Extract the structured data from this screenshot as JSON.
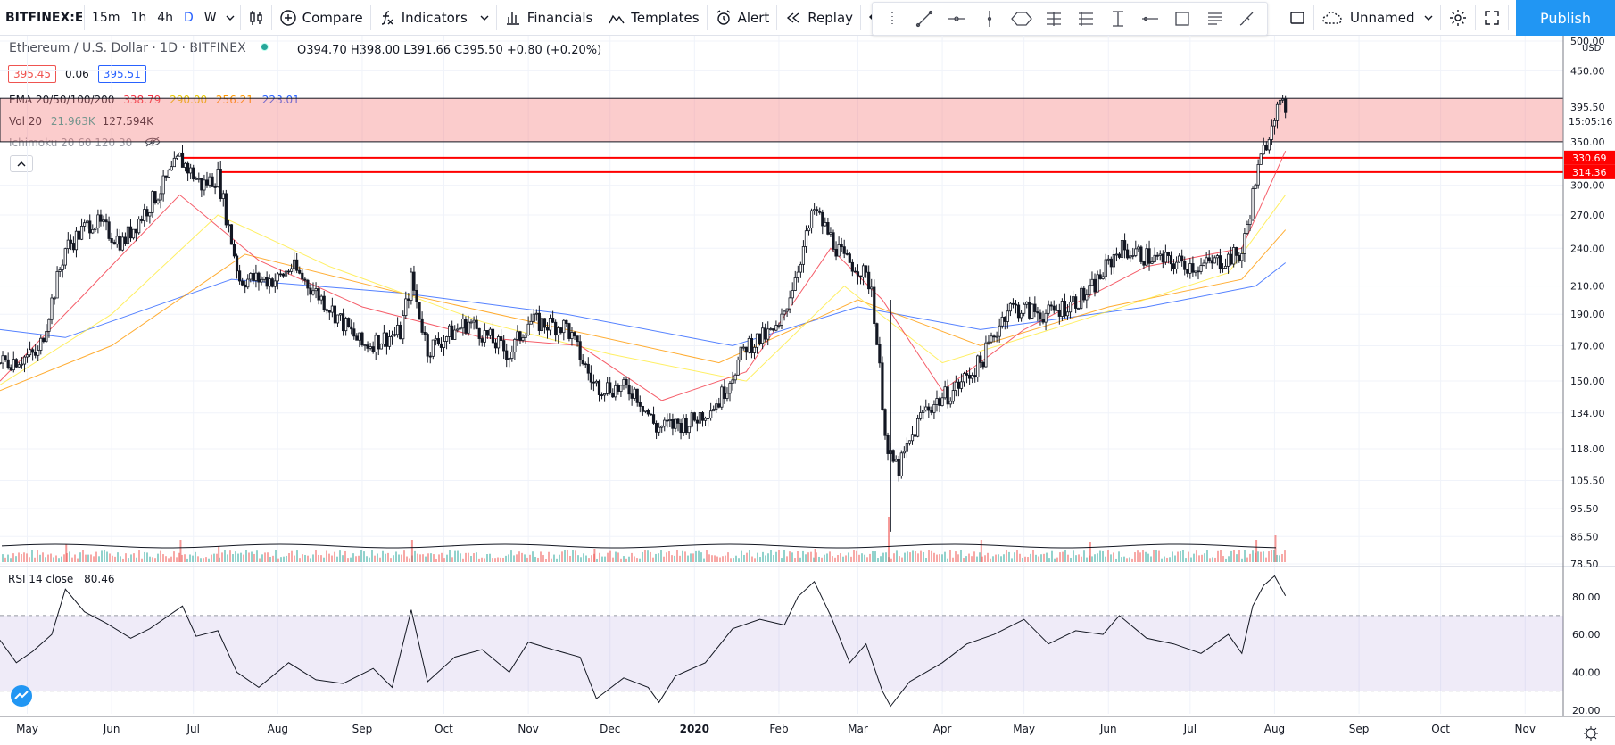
{
  "toolbar": {
    "symbol": "BITFINEX:ETHUSD",
    "intervals": [
      "15m",
      "1h",
      "4h",
      "D",
      "W"
    ],
    "active_interval": "D",
    "compare_label": "Compare",
    "indicators_label": "Indicators",
    "financials_label": "Financials",
    "templates_label": "Templates",
    "alert_label": "Alert",
    "replay_label": "Replay",
    "layout_name": "Unnamed",
    "publish_label": "Publish",
    "accent_color": "#2196f3"
  },
  "drawing_tools": [
    "trend-line-icon",
    "horizontal-ray-icon",
    "vertical-line-icon",
    "rotated-rectangle-icon",
    "fib-retracement-icon",
    "pitchfork-icon",
    "date-price-range-icon",
    "horizontal-line-icon",
    "rectangle-icon",
    "parallel-channel-icon",
    "brush-icon",
    "rectangle-outline-icon"
  ],
  "legend": {
    "title": "Ethereum / U.S. Dollar · 1D · BITFINEX",
    "open": "O394.70",
    "high": "H398.00",
    "low": "L391.66",
    "close": "C395.50",
    "change": "+0.80 (+0.20%)",
    "bid": "395.45",
    "spread": "0.06",
    "ask": "395.51"
  },
  "indicators": {
    "ema_label": "EMA 20/50/100/200",
    "ema_values": [
      "338.79",
      "290.00",
      "256.21",
      "228.01"
    ],
    "ema_colors": [
      "#f23645",
      "#ffeb3b",
      "#ff9800",
      "#2962ff"
    ],
    "vol_label": "Vol 20",
    "vol_values": [
      "21.963K",
      "127.594K"
    ],
    "ichimoku_label": "Ichimoku 20 60 120 30",
    "rsi_label": "RSI 14 close",
    "rsi_value": "80.46"
  },
  "price_axis": {
    "currency": "USD",
    "ticks": [
      "500.00",
      "450.00",
      "395.50",
      "350.00",
      "300.00",
      "270.00",
      "240.00",
      "210.00",
      "190.00",
      "170.00",
      "150.00",
      "134.00",
      "118.00",
      "105.50",
      "95.50",
      "86.50",
      "78.50"
    ],
    "last_price": "395.50",
    "countdown": "15:05:16",
    "levels": [
      "330.69",
      "314.36"
    ],
    "level_color": "#ff0000"
  },
  "rsi_axis": {
    "ticks": [
      "80.00",
      "60.00",
      "40.00",
      "20.00"
    ]
  },
  "time_axis": {
    "ticks": [
      "May",
      "Jun",
      "Jul",
      "Aug",
      "Sep",
      "Oct",
      "Nov",
      "Dec",
      "2020",
      "Feb",
      "Mar",
      "Apr",
      "May",
      "Jun",
      "Jul",
      "Aug",
      "Sep",
      "Oct",
      "Nov"
    ]
  },
  "chart_data": {
    "type": "candlestick",
    "scale": "log",
    "ylim": [
      78.5,
      500
    ],
    "x_range": [
      "2019-04-21",
      "2020-11-15"
    ],
    "last_date": "2020-08-05",
    "path_points": [
      [
        "2019-04-21",
        160
      ],
      [
        "2019-05-05",
        165
      ],
      [
        "2019-05-15",
        240
      ],
      [
        "2019-05-25",
        265
      ],
      [
        "2019-06-05",
        245
      ],
      [
        "2019-06-20",
        300
      ],
      [
        "2019-06-26",
        330
      ],
      [
        "2019-07-04",
        300
      ],
      [
        "2019-07-10",
        310
      ],
      [
        "2019-07-18",
        215
      ],
      [
        "2019-08-01",
        215
      ],
      [
        "2019-08-06",
        225
      ],
      [
        "2019-08-20",
        195
      ],
      [
        "2019-09-01",
        170
      ],
      [
        "2019-09-15",
        178
      ],
      [
        "2019-09-19",
        215
      ],
      [
        "2019-09-25",
        168
      ],
      [
        "2019-10-10",
        185
      ],
      [
        "2019-10-25",
        165
      ],
      [
        "2019-11-01",
        185
      ],
      [
        "2019-11-15",
        182
      ],
      [
        "2019-11-25",
        148
      ],
      [
        "2019-12-10",
        145
      ],
      [
        "2019-12-18",
        127
      ],
      [
        "2019-12-31",
        130
      ],
      [
        "2020-01-10",
        140
      ],
      [
        "2020-01-20",
        170
      ],
      [
        "2020-02-01",
        180
      ],
      [
        "2020-02-08",
        225
      ],
      [
        "2020-02-14",
        275
      ],
      [
        "2020-02-25",
        230
      ],
      [
        "2020-03-01",
        225
      ],
      [
        "2020-03-06",
        210
      ],
      [
        "2020-03-12",
        115
      ],
      [
        "2020-03-16",
        110
      ],
      [
        "2020-03-25",
        135
      ],
      [
        "2020-04-05",
        145
      ],
      [
        "2020-04-15",
        160
      ],
      [
        "2020-04-25",
        195
      ],
      [
        "2020-05-10",
        190
      ],
      [
        "2020-05-25",
        205
      ],
      [
        "2020-06-05",
        240
      ],
      [
        "2020-06-20",
        230
      ],
      [
        "2020-07-05",
        225
      ],
      [
        "2020-07-20",
        235
      ],
      [
        "2020-07-25",
        305
      ],
      [
        "2020-08-01",
        390
      ],
      [
        "2020-08-05",
        395.5
      ]
    ],
    "ema20": [
      [
        "2019-04-21",
        150
      ],
      [
        "2019-05-20",
        200
      ],
      [
        "2019-06-26",
        290
      ],
      [
        "2019-07-25",
        230
      ],
      [
        "2019-09-01",
        195
      ],
      [
        "2019-10-15",
        175
      ],
      [
        "2019-11-20",
        170
      ],
      [
        "2019-12-20",
        140
      ],
      [
        "2020-01-20",
        155
      ],
      [
        "2020-02-20",
        240
      ],
      [
        "2020-03-10",
        200
      ],
      [
        "2020-04-01",
        145
      ],
      [
        "2020-05-01",
        180
      ],
      [
        "2020-06-15",
        225
      ],
      [
        "2020-07-20",
        240
      ],
      [
        "2020-08-05",
        338.79
      ]
    ],
    "ema50": [
      [
        "2019-04-21",
        148
      ],
      [
        "2019-06-01",
        190
      ],
      [
        "2019-07-10",
        270
      ],
      [
        "2019-08-20",
        225
      ],
      [
        "2019-10-15",
        185
      ],
      [
        "2019-12-01",
        165
      ],
      [
        "2020-01-20",
        150
      ],
      [
        "2020-02-25",
        210
      ],
      [
        "2020-04-01",
        160
      ],
      [
        "2020-05-20",
        185
      ],
      [
        "2020-07-15",
        220
      ],
      [
        "2020-08-05",
        290.0
      ]
    ],
    "ema100": [
      [
        "2019-04-21",
        145
      ],
      [
        "2019-06-01",
        170
      ],
      [
        "2019-07-20",
        235
      ],
      [
        "2019-09-15",
        205
      ],
      [
        "2019-11-15",
        180
      ],
      [
        "2020-01-10",
        160
      ],
      [
        "2020-03-01",
        200
      ],
      [
        "2020-04-15",
        170
      ],
      [
        "2020-06-01",
        195
      ],
      [
        "2020-07-20",
        215
      ],
      [
        "2020-08-05",
        256.21
      ]
    ],
    "ema200": [
      [
        "2019-04-21",
        180
      ],
      [
        "2019-05-15",
        175
      ],
      [
        "2019-07-15",
        215
      ],
      [
        "2019-09-15",
        205
      ],
      [
        "2019-11-15",
        190
      ],
      [
        "2020-01-15",
        170
      ],
      [
        "2020-03-01",
        195
      ],
      [
        "2020-04-15",
        180
      ],
      [
        "2020-06-15",
        195
      ],
      [
        "2020-07-25",
        210
      ],
      [
        "2020-08-05",
        228.01
      ]
    ],
    "resistance_zone": [
      350,
      395.5
    ],
    "horizontal_levels": [
      {
        "price": 330.69,
        "from": "2019-06-27"
      },
      {
        "price": 314.36,
        "from": "2019-07-10"
      }
    ],
    "volume_spikes": [
      [
        "2019-05-15",
        0.4
      ],
      [
        "2019-06-26",
        0.5
      ],
      [
        "2019-07-10",
        0.35
      ],
      [
        "2019-09-19",
        0.5
      ],
      [
        "2019-11-25",
        0.3
      ],
      [
        "2020-02-14",
        0.3
      ],
      [
        "2020-03-12",
        1.0
      ],
      [
        "2020-04-15",
        0.5
      ],
      [
        "2020-05-25",
        0.45
      ],
      [
        "2020-07-25",
        0.5
      ],
      [
        "2020-08-01",
        0.6
      ]
    ],
    "rsi": {
      "ylim": [
        18,
        95
      ],
      "overbought": 70,
      "oversold": 30,
      "points": [
        [
          "2019-04-21",
          57
        ],
        [
          "2019-04-27",
          45
        ],
        [
          "2019-05-03",
          51
        ],
        [
          "2019-05-10",
          60
        ],
        [
          "2019-05-15",
          84
        ],
        [
          "2019-05-22",
          72
        ],
        [
          "2019-05-30",
          66
        ],
        [
          "2019-06-08",
          58
        ],
        [
          "2019-06-15",
          63
        ],
        [
          "2019-06-22",
          70
        ],
        [
          "2019-06-27",
          75
        ],
        [
          "2019-07-02",
          59
        ],
        [
          "2019-07-10",
          62
        ],
        [
          "2019-07-17",
          40
        ],
        [
          "2019-07-25",
          32
        ],
        [
          "2019-08-05",
          45
        ],
        [
          "2019-08-15",
          36
        ],
        [
          "2019-08-25",
          34
        ],
        [
          "2019-09-05",
          42
        ],
        [
          "2019-09-12",
          32
        ],
        [
          "2019-09-19",
          73
        ],
        [
          "2019-09-25",
          35
        ],
        [
          "2019-10-05",
          48
        ],
        [
          "2019-10-15",
          52
        ],
        [
          "2019-10-25",
          40
        ],
        [
          "2019-11-01",
          56
        ],
        [
          "2019-11-10",
          52
        ],
        [
          "2019-11-20",
          48
        ],
        [
          "2019-11-26",
          26
        ],
        [
          "2019-12-06",
          37
        ],
        [
          "2019-12-15",
          32
        ],
        [
          "2019-12-19",
          24
        ],
        [
          "2019-12-25",
          38
        ],
        [
          "2020-01-05",
          45
        ],
        [
          "2020-01-15",
          63
        ],
        [
          "2020-01-25",
          68
        ],
        [
          "2020-02-03",
          65
        ],
        [
          "2020-02-08",
          80
        ],
        [
          "2020-02-14",
          88
        ],
        [
          "2020-02-20",
          70
        ],
        [
          "2020-02-27",
          45
        ],
        [
          "2020-03-04",
          55
        ],
        [
          "2020-03-10",
          30
        ],
        [
          "2020-03-13",
          22
        ],
        [
          "2020-03-20",
          35
        ],
        [
          "2020-04-01",
          45
        ],
        [
          "2020-04-10",
          55
        ],
        [
          "2020-04-20",
          60
        ],
        [
          "2020-05-01",
          68
        ],
        [
          "2020-05-10",
          55
        ],
        [
          "2020-05-20",
          62
        ],
        [
          "2020-05-30",
          60
        ],
        [
          "2020-06-05",
          70
        ],
        [
          "2020-06-15",
          58
        ],
        [
          "2020-06-25",
          55
        ],
        [
          "2020-07-05",
          50
        ],
        [
          "2020-07-15",
          60
        ],
        [
          "2020-07-20",
          50
        ],
        [
          "2020-07-24",
          75
        ],
        [
          "2020-07-28",
          86
        ],
        [
          "2020-08-01",
          91
        ],
        [
          "2020-08-05",
          80.46
        ]
      ]
    }
  }
}
